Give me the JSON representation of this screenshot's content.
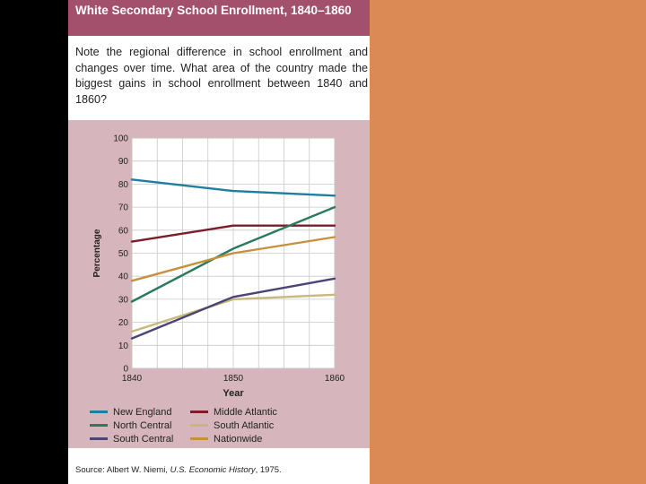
{
  "title": "White Secondary School Enrollment, 1840–1860",
  "question": "Note the regional difference in school enrollment and changes over time. What area of the country made the biggest gains in school enrollment between 1840 and 1860?",
  "source": {
    "prefix": "Source: Albert W. Niemi, ",
    "book": "U.S. Economic History",
    "suffix": ", 1975."
  },
  "colors": {
    "background": "#DB8A55",
    "header": "#A2506C",
    "panel": "#D6B6BC"
  },
  "chart_data": {
    "type": "line",
    "title": "White Secondary School Enrollment, 1840–1860",
    "xlabel": "Year",
    "ylabel": "Percentage",
    "x": [
      1840,
      1850,
      1860
    ],
    "xticks": [
      "1840",
      "1850",
      "1860"
    ],
    "yticks": [
      "0",
      "10",
      "20",
      "30",
      "40",
      "50",
      "60",
      "70",
      "80",
      "90",
      "100"
    ],
    "ylim": [
      0,
      100
    ],
    "grid": true,
    "legend_position": "bottom",
    "series": [
      {
        "name": "New England",
        "color": "#1F7E9E",
        "values": [
          82,
          77,
          75
        ]
      },
      {
        "name": "Middle Atlantic",
        "color": "#7A1E2C",
        "values": [
          55,
          62,
          62
        ]
      },
      {
        "name": "North Central",
        "color": "#2A7A5C",
        "values": [
          29,
          52,
          70
        ]
      },
      {
        "name": "South Atlantic",
        "color": "#C8B87A",
        "values": [
          16,
          30,
          32
        ]
      },
      {
        "name": "South Central",
        "color": "#4A4574",
        "values": [
          13,
          31,
          39
        ]
      },
      {
        "name": "Nationwide",
        "color": "#C8903C",
        "values": [
          38,
          50,
          57
        ]
      }
    ]
  }
}
